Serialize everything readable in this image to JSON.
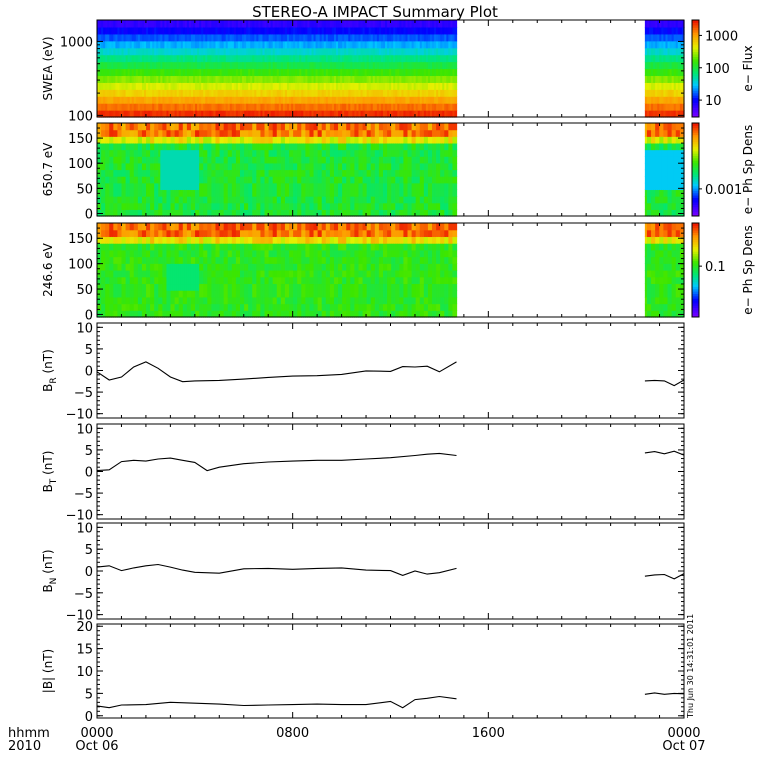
{
  "title": "STEREO-A IMPACT Summary Plot",
  "timestamp": "Thu Jun 30 14:31:01 2011",
  "time_axis": {
    "label_line1": "hhmm",
    "label_line2": "2010",
    "ticks": [
      {
        "hour": 0,
        "top": "0000",
        "bottom": "Oct 06"
      },
      {
        "hour": 8,
        "top": "0800",
        "bottom": ""
      },
      {
        "hour": 16,
        "top": "1600",
        "bottom": ""
      },
      {
        "hour": 24,
        "top": "0000",
        "bottom": "Oct 07"
      }
    ]
  },
  "chart_data": [
    {
      "type": "heatmap",
      "ylabel": "SWEA (eV)",
      "yscale": "log",
      "ylim": [
        95,
        1950
      ],
      "yticks": [
        {
          "value": 100,
          "label": "100"
        },
        {
          "value": 1000,
          "label": "1000"
        }
      ],
      "colorbar": {
        "label": "e− Flux",
        "scale": "log",
        "range": [
          3,
          3000
        ],
        "ticks": [
          {
            "value": 10,
            "label": "10"
          },
          {
            "value": 100,
            "label": "100"
          },
          {
            "value": 1000,
            "label": "1000"
          }
        ]
      },
      "data_intervals_hours": [
        [
          0,
          14.7
        ],
        [
          22.4,
          24
        ]
      ]
    },
    {
      "type": "heatmap",
      "ylabel": "650.7 eV",
      "ylim": [
        -5,
        180
      ],
      "yticks": [
        {
          "value": 0,
          "label": "0"
        },
        {
          "value": 50,
          "label": "50"
        },
        {
          "value": 100,
          "label": "100"
        },
        {
          "value": 150,
          "label": "150"
        }
      ],
      "colorbar": {
        "label": "e− Ph Sp Dens",
        "scale": "log",
        "range": [
          0.0002,
          0.05
        ],
        "ticks": [
          {
            "value": 0.001,
            "label": "0.001"
          }
        ]
      },
      "data_intervals_hours": [
        [
          0,
          14.7
        ],
        [
          22.4,
          24
        ]
      ]
    },
    {
      "type": "heatmap",
      "ylabel": "246.6 eV",
      "ylim": [
        -5,
        180
      ],
      "yticks": [
        {
          "value": 0,
          "label": "0"
        },
        {
          "value": 50,
          "label": "50"
        },
        {
          "value": 100,
          "label": "100"
        },
        {
          "value": 150,
          "label": "150"
        }
      ],
      "colorbar": {
        "label": "e− Ph Sp Dens",
        "scale": "log",
        "range": [
          0.015,
          0.5
        ],
        "ticks": [
          {
            "value": 0.1,
            "label": "0.1"
          }
        ]
      },
      "data_intervals_hours": [
        [
          0,
          14.7
        ],
        [
          22.4,
          24
        ]
      ]
    },
    {
      "type": "line",
      "series_name": "B_R",
      "ylabel": "B",
      "ylabel_sub": "R",
      "ylabel_unit": "(nT)",
      "ylim": [
        -11,
        11
      ],
      "yticks": [
        {
          "value": -10,
          "label": "−10"
        },
        {
          "value": -5,
          "label": "−5"
        },
        {
          "value": 0,
          "label": "0"
        },
        {
          "value": 5,
          "label": "5"
        },
        {
          "value": 10,
          "label": "10"
        }
      ],
      "segments": [
        {
          "x": [
            0,
            0.5,
            1.0,
            1.5,
            2.0,
            2.5,
            3.0,
            3.5,
            4.0,
            5.0,
            6.0,
            7.0,
            8.0,
            9.0,
            10.0,
            11.0,
            12.0,
            12.5,
            13.0,
            13.5,
            14.0,
            14.7
          ],
          "y": [
            -0.3,
            -2.2,
            -1.5,
            0.8,
            2.0,
            0.5,
            -1.5,
            -2.6,
            -2.4,
            -2.3,
            -2.0,
            -1.6,
            -1.3,
            -1.2,
            -0.9,
            -0.1,
            -0.2,
            0.9,
            0.8,
            1.0,
            -0.3,
            2.0
          ]
        },
        {
          "x": [
            22.4,
            22.8,
            23.2,
            23.6,
            24.0
          ],
          "y": [
            -2.4,
            -2.3,
            -2.4,
            -3.5,
            -2.2
          ]
        }
      ]
    },
    {
      "type": "line",
      "series_name": "B_T",
      "ylabel": "B",
      "ylabel_sub": "T",
      "ylabel_unit": "(nT)",
      "ylim": [
        -11,
        11
      ],
      "yticks": [
        {
          "value": -10,
          "label": "−10"
        },
        {
          "value": -5,
          "label": "−5"
        },
        {
          "value": 0,
          "label": "0"
        },
        {
          "value": 5,
          "label": "5"
        },
        {
          "value": 10,
          "label": "10"
        }
      ],
      "segments": [
        {
          "x": [
            0,
            0.5,
            1.0,
            1.5,
            2.0,
            2.5,
            3.0,
            3.5,
            4.0,
            4.5,
            5.0,
            6.0,
            7.0,
            8.0,
            9.0,
            10.0,
            11.0,
            12.0,
            13.0,
            13.5,
            14.0,
            14.7
          ],
          "y": [
            0.2,
            0.4,
            2.3,
            2.6,
            2.4,
            2.9,
            3.1,
            2.6,
            2.1,
            0.2,
            1.0,
            1.8,
            2.2,
            2.4,
            2.6,
            2.6,
            2.9,
            3.2,
            3.7,
            4.0,
            4.2,
            3.7
          ]
        },
        {
          "x": [
            22.4,
            22.8,
            23.2,
            23.6,
            24.0
          ],
          "y": [
            4.3,
            4.6,
            4.1,
            4.7,
            3.8
          ]
        }
      ]
    },
    {
      "type": "line",
      "series_name": "B_N",
      "ylabel": "B",
      "ylabel_sub": "N",
      "ylabel_unit": "(nT)",
      "ylim": [
        -11,
        11
      ],
      "yticks": [
        {
          "value": -10,
          "label": "−10"
        },
        {
          "value": -5,
          "label": "−5"
        },
        {
          "value": 0,
          "label": "0"
        },
        {
          "value": 5,
          "label": "5"
        },
        {
          "value": 10,
          "label": "10"
        }
      ],
      "segments": [
        {
          "x": [
            0,
            0.5,
            1.0,
            1.5,
            2.0,
            2.5,
            3.0,
            3.5,
            4.0,
            5.0,
            6.0,
            7.0,
            8.0,
            9.0,
            10.0,
            11.0,
            12.0,
            12.5,
            13.0,
            13.5,
            14.0,
            14.7
          ],
          "y": [
            0.9,
            1.2,
            0.1,
            0.7,
            1.2,
            1.5,
            0.9,
            0.2,
            -0.3,
            -0.5,
            0.5,
            0.6,
            0.4,
            0.6,
            0.7,
            0.2,
            0.1,
            -1.0,
            0.0,
            -0.7,
            -0.4,
            0.6
          ]
        },
        {
          "x": [
            22.4,
            22.8,
            23.2,
            23.6,
            24.0
          ],
          "y": [
            -1.2,
            -0.9,
            -0.8,
            -1.8,
            -0.6
          ]
        }
      ]
    },
    {
      "type": "line",
      "series_name": "|B|",
      "ylabel": "|B|",
      "ylabel_sub": "",
      "ylabel_unit": "(nT)",
      "ylim": [
        -0.5,
        20.5
      ],
      "yticks": [
        {
          "value": 0,
          "label": "0"
        },
        {
          "value": 5,
          "label": "5"
        },
        {
          "value": 10,
          "label": "10"
        },
        {
          "value": 15,
          "label": "15"
        },
        {
          "value": 20,
          "label": "20"
        }
      ],
      "segments": [
        {
          "x": [
            0,
            0.5,
            1.0,
            2.0,
            3.0,
            4.0,
            5.0,
            6.0,
            7.0,
            8.0,
            9.0,
            10.0,
            11.0,
            12.0,
            12.5,
            13.0,
            13.5,
            14.0,
            14.7
          ],
          "y": [
            2.2,
            1.8,
            2.4,
            2.5,
            3.0,
            2.8,
            2.6,
            2.3,
            2.4,
            2.5,
            2.6,
            2.5,
            2.5,
            3.2,
            1.8,
            3.6,
            3.9,
            4.3,
            3.8
          ]
        },
        {
          "x": [
            22.4,
            22.8,
            23.2,
            23.6,
            24.0
          ],
          "y": [
            4.8,
            5.1,
            4.8,
            5.0,
            4.9
          ]
        }
      ]
    }
  ]
}
